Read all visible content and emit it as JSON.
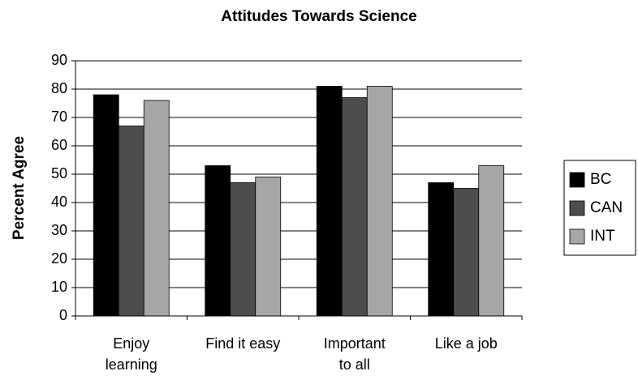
{
  "chart_data": {
    "type": "bar",
    "title": "Attitudes Towards Science",
    "y_label": "Percent Agree",
    "categories": [
      "Enjoy learning",
      "Find it easy",
      "Important to all",
      "Like a job"
    ],
    "series": [
      {
        "name": "BC",
        "color": "#000000",
        "values": [
          78,
          53,
          81,
          47
        ]
      },
      {
        "name": "CAN",
        "color": "#4d4d4d",
        "values": [
          67,
          47,
          77,
          45
        ]
      },
      {
        "name": "INT",
        "color": "#a6a6a6",
        "values": [
          76,
          49,
          81,
          53
        ]
      }
    ],
    "ylim": [
      0,
      90
    ],
    "yticks": [
      0,
      10,
      20,
      30,
      40,
      50,
      60,
      70,
      80,
      90
    ],
    "grid": true,
    "legend": "right"
  }
}
